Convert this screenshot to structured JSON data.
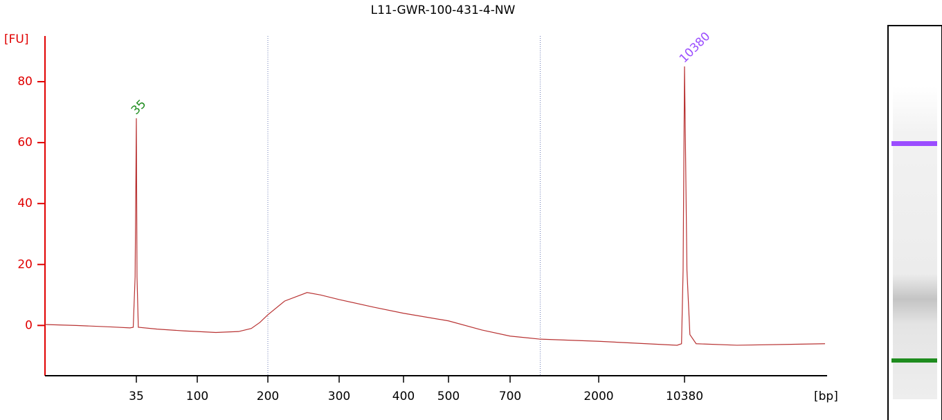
{
  "chart_data": {
    "type": "line",
    "title": "L11-GWR-100-431-4-NW",
    "y_label": "[FU]",
    "x_label": "[bp]",
    "x_scale": "log",
    "x": [
      15,
      20,
      28,
      33,
      34,
      34.6,
      35,
      35.4,
      36.2,
      50,
      80,
      100,
      120,
      150,
      170,
      185,
      200,
      220,
      250,
      270,
      300,
      350,
      400,
      500,
      600,
      700,
      1000,
      2000,
      5000,
      9000,
      9800,
      10100,
      10380,
      10700,
      11100,
      12000,
      20000,
      60000
    ],
    "series": [
      {
        "color": "#b83232",
        "values": [
          0.3,
          0,
          -0.5,
          -0.8,
          -0.6,
          16,
          68,
          16,
          -0.6,
          -1.2,
          -1.8,
          -2,
          -2.3,
          -2,
          -1,
          1,
          3.5,
          8,
          10.8,
          10,
          8.5,
          6,
          4,
          1.5,
          -1.5,
          -3.5,
          -4.5,
          -5.2,
          -6,
          -6.5,
          -6,
          18,
          85,
          18,
          -3,
          -6,
          -6.5,
          -6
        ]
      }
    ],
    "xlim": [
      15,
      60000
    ],
    "xticks": [
      35,
      100,
      200,
      300,
      400,
      500,
      700,
      2000,
      10380
    ],
    "ylim": [
      -16.5,
      95
    ],
    "yticks": [
      0,
      20,
      40,
      60,
      80
    ],
    "region_markers": [
      200,
      1000
    ],
    "peaks": [
      {
        "x": 35,
        "y": 68,
        "color": "#1e8c1e"
      },
      {
        "x": 10380,
        "y": 85,
        "color": "#9b4dff"
      }
    ]
  }
}
